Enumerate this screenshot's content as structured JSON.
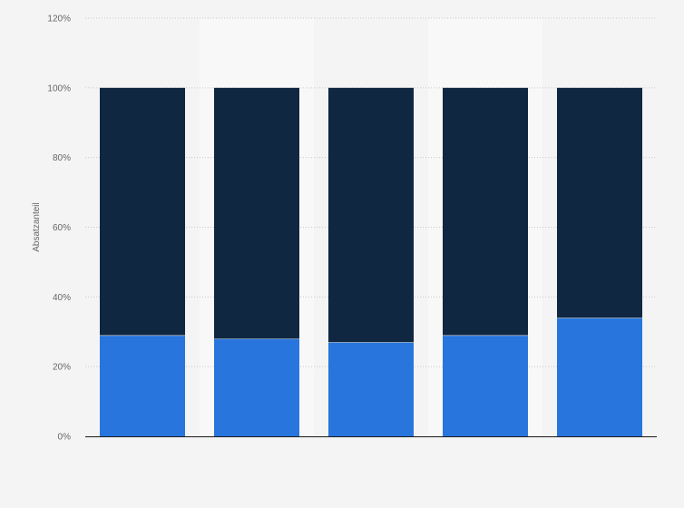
{
  "chart_data": {
    "type": "bar",
    "stacked": true,
    "categories": [
      "",
      "",
      "",
      "",
      ""
    ],
    "series": [
      {
        "values": [
          29,
          28,
          27,
          29,
          34
        ],
        "color": "#2876dd"
      },
      {
        "values": [
          71,
          72,
          73,
          71,
          66
        ],
        "color": "#0f2740"
      }
    ],
    "ylabel": "Absatzanteil",
    "ylim": [
      0,
      120
    ],
    "yticks": [
      0,
      20,
      40,
      60,
      80,
      100,
      120
    ],
    "ytick_labels": [
      "0%",
      "20%",
      "40%",
      "60%",
      "80%",
      "100%",
      "120%"
    ],
    "grid": true,
    "legend": "none"
  }
}
